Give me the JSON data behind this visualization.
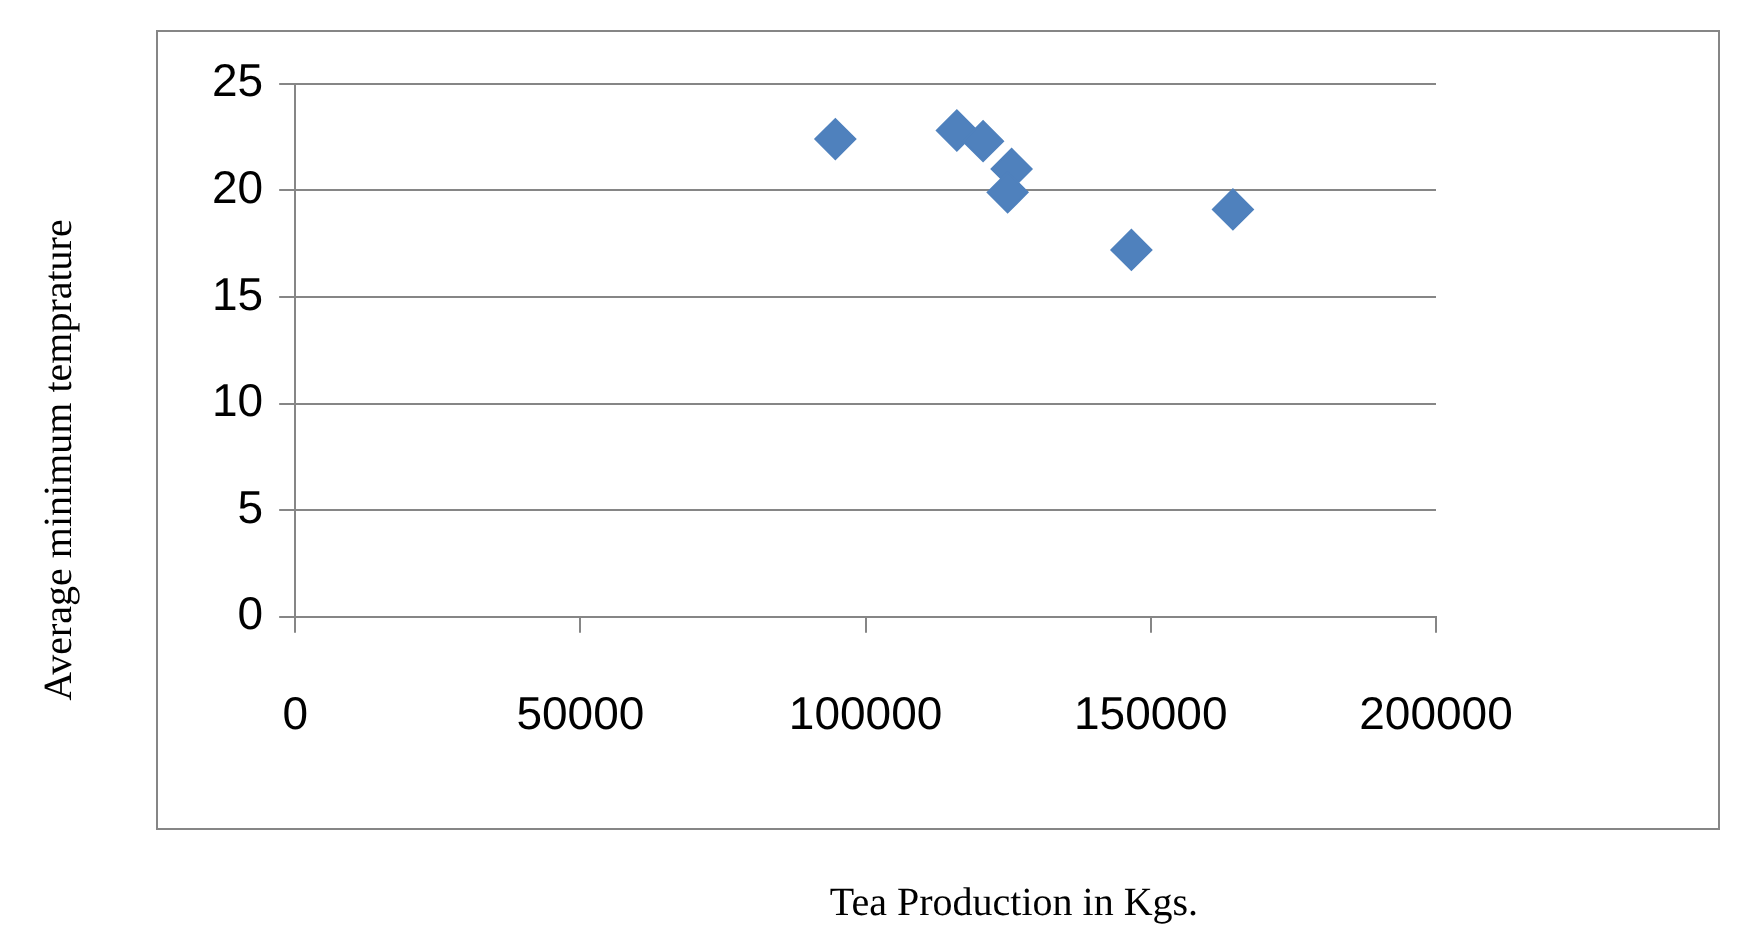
{
  "chart_data": {
    "type": "scatter",
    "xlabel": "Tea Production in Kgs.",
    "ylabel": "Average minimum temprature",
    "x": [
      94700,
      116000,
      120600,
      125600,
      124900,
      146600,
      164400
    ],
    "series": [
      {
        "color": "#4f81bd",
        "values": [
          22.4,
          22.8,
          22.3,
          21.0,
          19.9,
          17.2,
          19.1
        ]
      }
    ],
    "xlim": [
      0,
      200000
    ],
    "xticks": [
      0,
      50000,
      100000,
      150000,
      200000
    ],
    "ylim": [
      0,
      25
    ],
    "yticks": [
      0,
      5,
      10,
      15,
      20,
      25
    ],
    "grid": "y",
    "legend": false,
    "marker": "diamond"
  }
}
